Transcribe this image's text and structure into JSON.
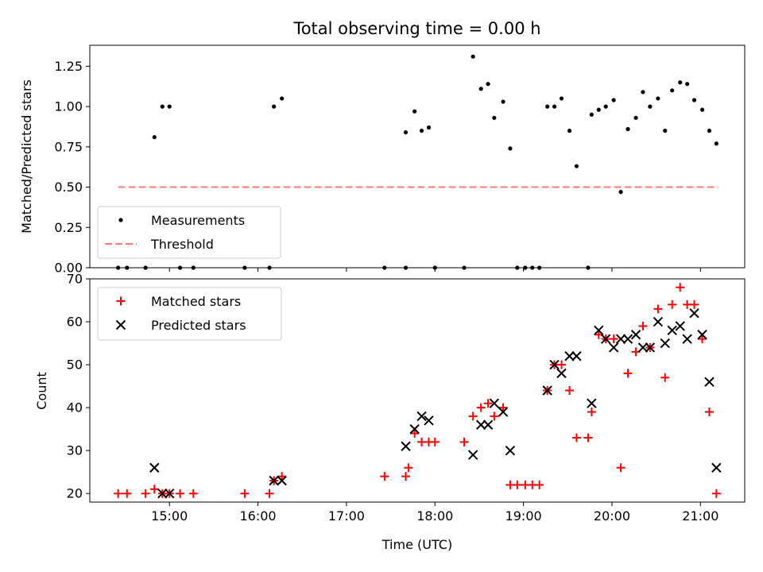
{
  "chart_data": [
    {
      "type": "scatter",
      "title": "Total observing time = 0.00 h",
      "ylabel": "Matched/Predicted stars",
      "xlabel": "",
      "ylim": [
        0,
        1.38
      ],
      "yticks": [
        0.0,
        0.25,
        0.5,
        0.75,
        1.0,
        1.25
      ],
      "ytick_labels": [
        "0.00",
        "0.25",
        "0.50",
        "0.75",
        "1.00",
        "1.25"
      ],
      "xticks_hours": [
        15,
        16,
        17,
        18,
        19,
        20,
        21
      ],
      "xticks_show_labels": false,
      "xlim_hours": [
        14.1,
        21.5
      ],
      "legend_position": "lower-left",
      "series": [
        {
          "name": "Measurements",
          "style": "dot",
          "color": "#000000",
          "x_hours": [
            14.42,
            14.52,
            14.73,
            14.83,
            14.92,
            15.0,
            15.12,
            15.27,
            15.85,
            16.13,
            16.18,
            16.27,
            17.43,
            17.67,
            17.67,
            17.77,
            17.85,
            17.93,
            18.0,
            18.33,
            18.43,
            18.52,
            18.6,
            18.67,
            18.77,
            18.85,
            18.93,
            19.02,
            19.1,
            19.18,
            19.27,
            19.35,
            19.43,
            19.52,
            19.6,
            19.73,
            19.77,
            19.85,
            19.93,
            20.02,
            20.1,
            20.18,
            20.27,
            20.35,
            20.43,
            20.52,
            20.6,
            20.68,
            20.77,
            20.85,
            20.93,
            21.02,
            21.1,
            21.18
          ],
          "y": [
            0.0,
            0.0,
            0.0,
            0.81,
            1.0,
            1.0,
            0.0,
            0.0,
            0.0,
            0.0,
            1.0,
            1.05,
            0.0,
            0.84,
            0.0,
            0.97,
            0.85,
            0.87,
            0.0,
            0.0,
            1.31,
            1.11,
            1.14,
            0.93,
            1.03,
            0.74,
            0.0,
            0.0,
            0.0,
            0.0,
            1.0,
            1.0,
            1.05,
            0.85,
            0.63,
            0.0,
            0.95,
            0.98,
            1.0,
            1.04,
            0.47,
            0.86,
            0.93,
            1.09,
            1.0,
            1.05,
            0.85,
            1.1,
            1.15,
            1.14,
            1.04,
            0.98,
            0.85,
            0.77
          ]
        },
        {
          "name": "Threshold",
          "style": "dashed-line",
          "color": "#ff7a7a",
          "x_hours": [
            14.42,
            21.2
          ],
          "y": [
            0.5,
            0.5
          ]
        }
      ]
    },
    {
      "type": "scatter",
      "title": "",
      "ylabel": "Count",
      "xlabel": "Time (UTC)",
      "ylim": [
        18,
        70
      ],
      "yticks": [
        20,
        30,
        40,
        50,
        60,
        70
      ],
      "ytick_labels": [
        "20",
        "30",
        "40",
        "50",
        "60",
        "70"
      ],
      "xticks_hours": [
        15,
        16,
        17,
        18,
        19,
        20,
        21
      ],
      "xtick_labels": [
        "15:00",
        "16:00",
        "17:00",
        "18:00",
        "19:00",
        "20:00",
        "21:00"
      ],
      "xlim_hours": [
        14.1,
        21.5
      ],
      "legend_position": "upper-left",
      "series": [
        {
          "name": "Matched stars",
          "style": "plus",
          "color": "#ff0000",
          "x_hours": [
            14.42,
            14.52,
            14.73,
            14.83,
            14.92,
            15.0,
            15.12,
            15.27,
            15.85,
            16.13,
            16.18,
            16.27,
            17.43,
            17.67,
            17.7,
            17.77,
            17.85,
            17.93,
            18.0,
            18.33,
            18.43,
            18.52,
            18.6,
            18.67,
            18.77,
            18.85,
            18.93,
            19.02,
            19.1,
            19.18,
            19.27,
            19.35,
            19.43,
            19.52,
            19.6,
            19.73,
            19.77,
            19.85,
            19.93,
            20.02,
            20.1,
            20.18,
            20.27,
            20.35,
            20.43,
            20.52,
            20.6,
            20.68,
            20.77,
            20.85,
            20.93,
            21.02,
            21.1,
            21.18
          ],
          "y": [
            20,
            20,
            20,
            21,
            20,
            20,
            20,
            20,
            20,
            20,
            23,
            24,
            24,
            24,
            26,
            34,
            32,
            32,
            32,
            32,
            38,
            40,
            41,
            38,
            40,
            22,
            22,
            22,
            22,
            22,
            44,
            50,
            50,
            44,
            33,
            33,
            39,
            57,
            56,
            56,
            26,
            48,
            53,
            59,
            54,
            63,
            47,
            64,
            68,
            64,
            64,
            56,
            39,
            20
          ]
        },
        {
          "name": "Predicted stars",
          "style": "cross",
          "color": "#000000",
          "x_hours": [
            14.83,
            14.92,
            15.0,
            16.18,
            16.27,
            17.67,
            17.77,
            17.85,
            17.93,
            18.43,
            18.52,
            18.6,
            18.67,
            18.77,
            18.85,
            19.27,
            19.35,
            19.43,
            19.52,
            19.6,
            19.77,
            19.85,
            19.93,
            20.02,
            20.1,
            20.18,
            20.27,
            20.35,
            20.43,
            20.52,
            20.6,
            20.68,
            20.77,
            20.85,
            20.93,
            21.02,
            21.1,
            21.18
          ],
          "y": [
            26,
            20,
            20,
            23,
            23,
            31,
            35,
            38,
            37,
            29,
            36,
            36,
            41,
            39,
            30,
            44,
            50,
            48,
            52,
            52,
            41,
            58,
            56,
            54,
            56,
            56,
            57,
            54,
            54,
            60,
            55,
            58,
            59,
            56,
            62,
            57,
            46,
            26
          ]
        }
      ]
    }
  ]
}
